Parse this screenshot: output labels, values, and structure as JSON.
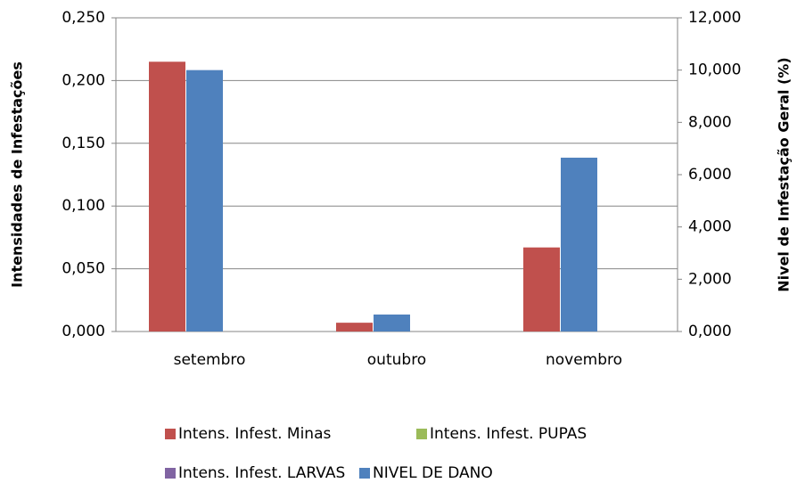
{
  "chart_data": {
    "type": "bar",
    "y_label": "Intensidades de Infestações",
    "y2_label": "Nivel de Infestação Geral (%)",
    "categories": [
      "setembro",
      "outubro",
      "novembro"
    ],
    "series": [
      {
        "name": "Intens. Infest.  Minas",
        "color": "#c0504d",
        "values": [
          0.215,
          0.007,
          0.067
        ]
      },
      {
        "name": "Intens. Infest.  PUPAS",
        "color": "#9bbb59",
        "values": [
          0,
          0,
          0
        ]
      },
      {
        "name": "Intens. Infest.  LARVAS",
        "color": "#8064a2",
        "values": [
          0,
          0,
          0
        ]
      },
      {
        "name": "NIVEL DE DANO",
        "color": "#4f81bd",
        "axis": "y2",
        "values": [
          10.0,
          0.65,
          6.65
        ]
      }
    ],
    "ylim": [
      0,
      0.25
    ],
    "yticks": [
      {
        "value": 0,
        "label": "0,000"
      },
      {
        "value": 0.05,
        "label": "0,050"
      },
      {
        "value": 0.1,
        "label": "0,100"
      },
      {
        "value": 0.15,
        "label": "0,150"
      },
      {
        "value": 0.2,
        "label": "0,200"
      },
      {
        "value": 0.25,
        "label": "0,250"
      }
    ],
    "y2lim": [
      0,
      12
    ],
    "y2ticks": [
      {
        "value": 0,
        "label": "0,000"
      },
      {
        "value": 2,
        "label": "2,000"
      },
      {
        "value": 4,
        "label": "4,000"
      },
      {
        "value": 6,
        "label": "6,000"
      },
      {
        "value": 8,
        "label": "8,000"
      },
      {
        "value": 10,
        "label": "10,000"
      },
      {
        "value": 12,
        "label": "12,000"
      }
    ],
    "grid": true,
    "legend": "bottom"
  }
}
